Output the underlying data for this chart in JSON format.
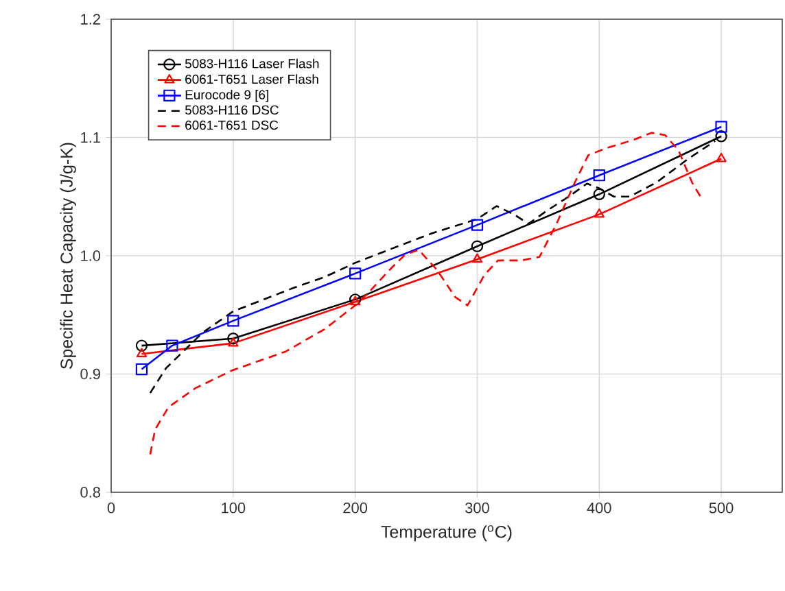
{
  "chart_data": {
    "type": "line",
    "xlabel": "Temperature ($^{o}$C)",
    "ylabel": "Specific Heat Capacity (J/g-K)",
    "xlim": [
      0,
      550
    ],
    "ylim": [
      0.8,
      1.2
    ],
    "xticks": [
      0,
      100,
      200,
      300,
      400,
      500
    ],
    "yticks": [
      0.8,
      0.9,
      {
        "value": 1,
        "label": "1.0"
      },
      1.1,
      1.2
    ],
    "grid": true,
    "legend": "top left",
    "series": [
      {
        "name": "5083-H116 Laser Flash",
        "color": "#000000",
        "marker": "circle",
        "line_style": "solid",
        "x": [
          25,
          100,
          200,
          300,
          400,
          500
        ],
        "values": [
          0.924,
          0.93,
          0.963,
          1.008,
          1.052,
          1.101
        ]
      },
      {
        "name": "6061-T651 Laser Flash",
        "color": "#ff0000",
        "marker": "triangle",
        "line_style": "solid",
        "x": [
          25,
          100,
          200,
          300,
          400,
          500
        ],
        "values": [
          0.917,
          0.926,
          0.961,
          0.997,
          1.035,
          1.082
        ]
      },
      {
        "name": "Eurocode 9 [6]",
        "color": "#0000ff",
        "marker": "square",
        "line_style": "solid",
        "x": [
          25,
          50,
          100,
          200,
          300,
          400,
          500
        ],
        "values": [
          0.904,
          0.924,
          0.945,
          0.985,
          1.026,
          1.068,
          1.109
        ]
      },
      {
        "name": "5083-H116 DSC",
        "color": "#000000",
        "marker": "none",
        "line_style": "dashed",
        "x": [
          32,
          45,
          55,
          75,
          100,
          125,
          150,
          175,
          200,
          230,
          263,
          300,
          316,
          330,
          342,
          357,
          375,
          390,
          400,
          412,
          425,
          447,
          473,
          495
        ],
        "values": [
          0.884,
          0.905,
          0.915,
          0.935,
          0.953,
          0.963,
          0.973,
          0.982,
          0.994,
          1.006,
          1.019,
          1.031,
          1.042,
          1.035,
          1.027,
          1.038,
          1.05,
          1.061,
          1.057,
          1.05,
          1.05,
          1.062,
          1.082,
          1.097
        ]
      },
      {
        "name": "6061-T651 DSC",
        "color": "#ff0000",
        "marker": "none",
        "line_style": "dashed",
        "x": [
          32,
          36,
          47,
          69,
          99,
          143,
          175,
          200,
          211,
          230,
          241,
          252,
          267,
          282,
          292,
          306,
          317,
          336,
          351,
          365,
          380,
          391,
          406,
          428,
          443,
          454,
          465,
          476,
          483
        ],
        "values": [
          0.832,
          0.853,
          0.872,
          0.888,
          0.903,
          0.919,
          0.938,
          0.958,
          0.969,
          0.99,
          1.001,
          1.005,
          0.988,
          0.965,
          0.958,
          0.984,
          0.996,
          0.996,
          0.999,
          1.027,
          1.062,
          1.085,
          1.091,
          1.098,
          1.104,
          1.102,
          1.089,
          1.062,
          1.05
        ]
      }
    ]
  }
}
